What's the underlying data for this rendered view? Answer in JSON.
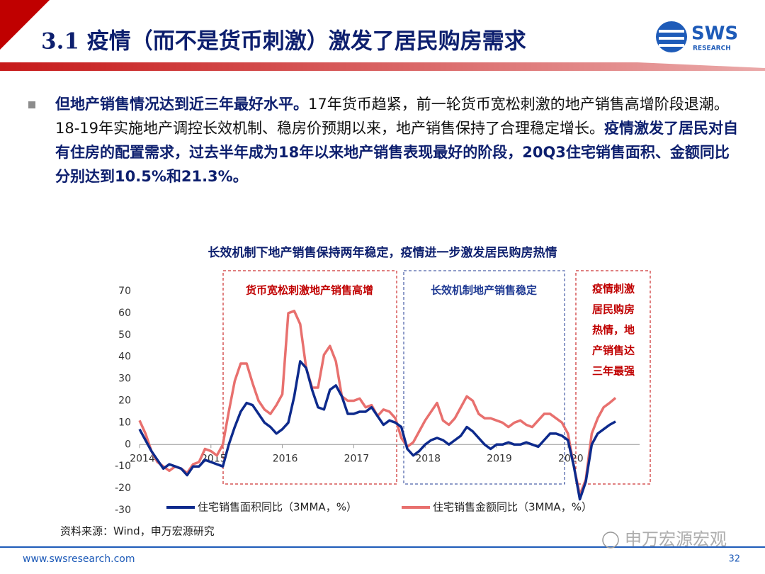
{
  "header": {
    "title": "3.1 疫情（而不是货币刺激）激发了居民购房需求",
    "logo": {
      "brand": "SWS",
      "sub": "RESEARCH"
    }
  },
  "bullet": {
    "runs": [
      {
        "text": "但地产销售情况达到近三年最好水平。",
        "bold": true
      },
      {
        "text": "17年货币趋紧，前一轮货币宽松刺激的地产销售高增阶段退潮。18-19年实施地产调控长效机制、稳房价预期以来，地产销售保持了合理稳定增长。",
        "bold": false
      },
      {
        "text": "疫情激发了居民对自有住房的配置需求，过去半年成为18年以来地产销售表现最好的阶段，20Q3住宅销售面积、金额同比分别达到10.5%和21.3%。",
        "bold": true
      }
    ]
  },
  "chart_data": {
    "type": "line",
    "title": "长效机制下地产销售保持两年稳定，疫情进一步激发居民购房热情",
    "categories": [
      "2014",
      null,
      null,
      null,
      null,
      null,
      null,
      null,
      null,
      null,
      null,
      null,
      "2015",
      null,
      null,
      null,
      null,
      null,
      null,
      null,
      null,
      null,
      null,
      null,
      "2016",
      null,
      null,
      null,
      null,
      null,
      null,
      null,
      null,
      null,
      null,
      null,
      "2017",
      null,
      null,
      null,
      null,
      null,
      null,
      null,
      null,
      null,
      null,
      null,
      "2018",
      null,
      null,
      null,
      null,
      null,
      null,
      null,
      null,
      null,
      null,
      null,
      "2019",
      null,
      null,
      null,
      null,
      null,
      null,
      null,
      null,
      null,
      null,
      null,
      "2020",
      null,
      null,
      null,
      null,
      null,
      null,
      null,
      null
    ],
    "series": [
      {
        "name": "住宅销售面积同比（3MMA，%）",
        "color": "#0d2a8c",
        "values": [
          7,
          2,
          -3,
          -7,
          -11,
          -9,
          -10,
          -11,
          -14,
          -10,
          -10,
          -7,
          -8,
          -9,
          -10,
          0,
          8,
          15,
          19,
          18,
          14,
          10,
          8,
          5,
          7,
          10,
          22,
          38,
          35,
          25,
          17,
          16,
          25,
          27,
          22,
          14,
          14,
          15,
          15,
          17,
          13,
          9,
          11,
          10,
          8,
          -2,
          -5,
          -3,
          0,
          2,
          3,
          2,
          0,
          2,
          4,
          8,
          6,
          3,
          0,
          -2,
          0,
          0,
          1,
          0,
          0,
          1,
          0,
          -1,
          2,
          5,
          5,
          4,
          2,
          -10,
          -25,
          -17,
          0,
          5,
          7,
          9,
          10.5
        ]
      },
      {
        "name": "住宅销售金额同比（3MMA，%）",
        "color": "#e8706e",
        "values": [
          11,
          5,
          -3,
          -8,
          -10,
          -12,
          -10,
          -11,
          -13,
          -9,
          -8,
          -2,
          -3,
          -5,
          0,
          15,
          29,
          37,
          37,
          28,
          20,
          16,
          14,
          18,
          23,
          60,
          61,
          55,
          35,
          26,
          26,
          41,
          45,
          38,
          22,
          20,
          20,
          21,
          17,
          18,
          13,
          16,
          15,
          12,
          3,
          -1,
          1,
          6,
          11,
          15,
          19,
          11,
          9,
          12,
          17,
          22,
          20,
          14,
          12,
          12,
          11,
          10,
          8,
          10,
          11,
          9,
          8,
          11,
          14,
          14,
          12,
          10,
          5,
          -10,
          -23,
          -16,
          5,
          12,
          17,
          19,
          21.3
        ]
      }
    ],
    "ylim": [
      -30,
      70
    ],
    "yticks": [
      -30,
      -20,
      -10,
      0,
      10,
      20,
      30,
      40,
      50,
      60,
      70
    ],
    "annotations": [
      {
        "lines": [
          "货币宽松刺激地产销售高增"
        ],
        "color": "#c00000"
      },
      {
        "lines": [
          "长效机制地产销售稳定"
        ],
        "color": "#1f3a93"
      },
      {
        "lines": [
          "疫情刺激",
          "居民购房",
          "热情，地",
          "产销售达",
          "三年最强"
        ],
        "color": "#c00000"
      }
    ]
  },
  "source": "资料来源：Wind，申万宏源研究",
  "footer": {
    "url": "www.swsresearch.com",
    "page": "32",
    "watermark": "申万宏源宏观"
  }
}
